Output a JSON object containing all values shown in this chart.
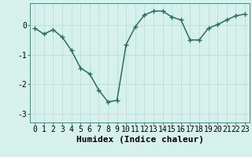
{
  "x": [
    0,
    1,
    2,
    3,
    4,
    5,
    6,
    7,
    8,
    9,
    10,
    11,
    12,
    13,
    14,
    15,
    16,
    17,
    18,
    19,
    20,
    21,
    22,
    23
  ],
  "y": [
    -0.1,
    -0.3,
    -0.15,
    -0.4,
    -0.85,
    -1.45,
    -1.65,
    -2.2,
    -2.6,
    -2.55,
    -0.65,
    -0.05,
    0.35,
    0.48,
    0.48,
    0.28,
    0.18,
    -0.5,
    -0.5,
    -0.1,
    0.02,
    0.18,
    0.32,
    0.38
  ],
  "line_color": "#2a6e63",
  "marker": "+",
  "marker_size": 5,
  "bg_color": "#d6f0ec",
  "grid_color": "#b8d8d4",
  "xlabel": "Humidex (Indice chaleur)",
  "yticks": [
    0,
    -1,
    -2,
    -3
  ],
  "ylim": [
    -3.3,
    0.75
  ],
  "xlim": [
    -0.5,
    23.5
  ],
  "xlabel_fontsize": 8,
  "tick_fontsize": 7,
  "line_width": 1.1
}
